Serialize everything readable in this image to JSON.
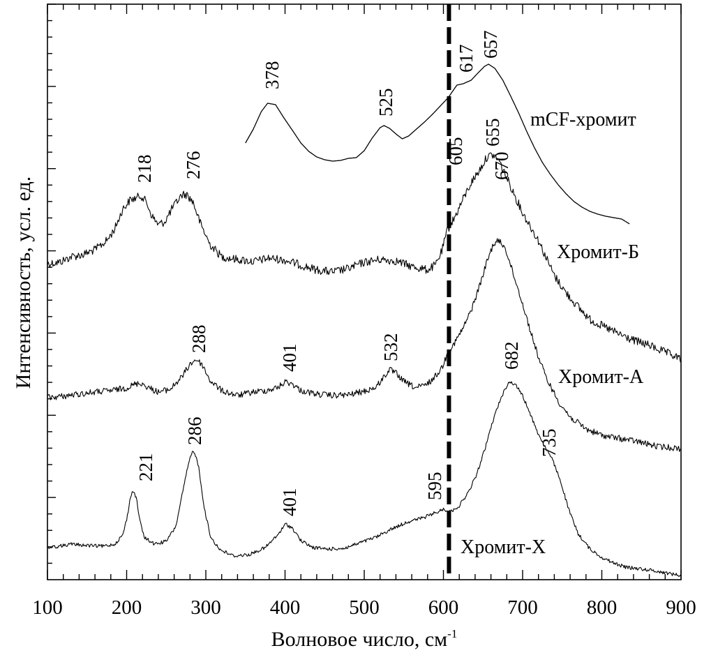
{
  "chart_data": {
    "type": "line",
    "title": "",
    "xlabel": "Волновое число, см",
    "xlabel_sup": "-1",
    "ylabel": "Интенсивность, усл. ед.",
    "xlim": [
      100,
      900
    ],
    "xticks": [
      100,
      200,
      300,
      400,
      500,
      600,
      700,
      800,
      900
    ],
    "xtick_labels": [
      "100",
      "200",
      "300",
      "400",
      "500",
      "600",
      "700",
      "800",
      "900"
    ],
    "y_tick_labels": false,
    "grid": false,
    "marker_line": {
      "x": 607,
      "style": "dashed"
    },
    "series": [
      {
        "name": "mCF-хромит",
        "noise": 0,
        "points": [
          [
            350,
            205
          ],
          [
            360,
            185
          ],
          [
            370,
            160
          ],
          [
            378,
            148
          ],
          [
            388,
            150
          ],
          [
            398,
            168
          ],
          [
            410,
            188
          ],
          [
            420,
            205
          ],
          [
            430,
            217
          ],
          [
            440,
            225
          ],
          [
            450,
            229
          ],
          [
            460,
            231
          ],
          [
            470,
            230
          ],
          [
            480,
            227
          ],
          [
            490,
            226
          ],
          [
            500,
            216
          ],
          [
            510,
            198
          ],
          [
            520,
            183
          ],
          [
            525,
            180
          ],
          [
            532,
            184
          ],
          [
            540,
            192
          ],
          [
            548,
            199
          ],
          [
            556,
            195
          ],
          [
            566,
            185
          ],
          [
            576,
            175
          ],
          [
            586,
            164
          ],
          [
            596,
            152
          ],
          [
            606,
            140
          ],
          [
            617,
            122
          ],
          [
            625,
            120
          ],
          [
            635,
            115
          ],
          [
            645,
            103
          ],
          [
            652,
            95
          ],
          [
            657,
            92
          ],
          [
            665,
            98
          ],
          [
            675,
            115
          ],
          [
            685,
            138
          ],
          [
            695,
            162
          ],
          [
            705,
            188
          ],
          [
            715,
            212
          ],
          [
            725,
            233
          ],
          [
            735,
            250
          ],
          [
            745,
            265
          ],
          [
            755,
            278
          ],
          [
            765,
            289
          ],
          [
            775,
            297
          ],
          [
            785,
            303
          ],
          [
            795,
            307
          ],
          [
            805,
            310
          ],
          [
            815,
            312
          ],
          [
            825,
            314
          ],
          [
            835,
            321
          ]
        ]
      },
      {
        "name": "Хромит-Б",
        "noise": 12,
        "points": [
          [
            100,
            378
          ],
          [
            115,
            376
          ],
          [
            130,
            368
          ],
          [
            145,
            365
          ],
          [
            160,
            358
          ],
          [
            175,
            345
          ],
          [
            185,
            328
          ],
          [
            195,
            300
          ],
          [
            205,
            286
          ],
          [
            212,
            284
          ],
          [
            218,
            280
          ],
          [
            225,
            290
          ],
          [
            232,
            310
          ],
          [
            240,
            322
          ],
          [
            248,
            318
          ],
          [
            258,
            298
          ],
          [
            266,
            285
          ],
          [
            270,
            279
          ],
          [
            276,
            279
          ],
          [
            284,
            290
          ],
          [
            293,
            320
          ],
          [
            305,
            350
          ],
          [
            320,
            368
          ],
          [
            340,
            372
          ],
          [
            360,
            375
          ],
          [
            380,
            370
          ],
          [
            400,
            373
          ],
          [
            420,
            380
          ],
          [
            440,
            387
          ],
          [
            460,
            390
          ],
          [
            480,
            385
          ],
          [
            500,
            376
          ],
          [
            520,
            372
          ],
          [
            540,
            374
          ],
          [
            560,
            382
          ],
          [
            580,
            387
          ],
          [
            590,
            380
          ],
          [
            598,
            360
          ],
          [
            605,
            330
          ],
          [
            615,
            310
          ],
          [
            625,
            285
          ],
          [
            635,
            262
          ],
          [
            645,
            245
          ],
          [
            655,
            225
          ],
          [
            662,
            222
          ],
          [
            670,
            230
          ],
          [
            680,
            255
          ],
          [
            690,
            280
          ],
          [
            700,
            305
          ],
          [
            710,
            325
          ],
          [
            720,
            345
          ],
          [
            730,
            370
          ],
          [
            740,
            395
          ],
          [
            755,
            420
          ],
          [
            770,
            440
          ],
          [
            785,
            458
          ],
          [
            800,
            467
          ],
          [
            820,
            478
          ],
          [
            840,
            488
          ],
          [
            860,
            495
          ],
          [
            880,
            505
          ],
          [
            900,
            515
          ]
        ]
      },
      {
        "name": "Хромит-А",
        "noise": 9,
        "points": [
          [
            100,
            570
          ],
          [
            120,
            568
          ],
          [
            140,
            565
          ],
          [
            160,
            562
          ],
          [
            180,
            560
          ],
          [
            200,
            556
          ],
          [
            210,
            551
          ],
          [
            218,
            549
          ],
          [
            228,
            556
          ],
          [
            240,
            562
          ],
          [
            255,
            558
          ],
          [
            270,
            540
          ],
          [
            280,
            522
          ],
          [
            288,
            515
          ],
          [
            296,
            524
          ],
          [
            305,
            545
          ],
          [
            320,
            560
          ],
          [
            340,
            567
          ],
          [
            360,
            562
          ],
          [
            375,
            560
          ],
          [
            390,
            556
          ],
          [
            401,
            547
          ],
          [
            410,
            551
          ],
          [
            420,
            560
          ],
          [
            440,
            565
          ],
          [
            460,
            567
          ],
          [
            480,
            566
          ],
          [
            500,
            561
          ],
          [
            515,
            555
          ],
          [
            525,
            540
          ],
          [
            532,
            530
          ],
          [
            540,
            535
          ],
          [
            550,
            547
          ],
          [
            565,
            556
          ],
          [
            578,
            552
          ],
          [
            588,
            542
          ],
          [
            598,
            527
          ],
          [
            606,
            505
          ],
          [
            615,
            490
          ],
          [
            625,
            470
          ],
          [
            635,
            445
          ],
          [
            645,
            412
          ],
          [
            655,
            375
          ],
          [
            663,
            350
          ],
          [
            670,
            345
          ],
          [
            678,
            355
          ],
          [
            688,
            392
          ],
          [
            698,
            428
          ],
          [
            710,
            475
          ],
          [
            720,
            512
          ],
          [
            730,
            542
          ],
          [
            745,
            575
          ],
          [
            760,
            598
          ],
          [
            780,
            615
          ],
          [
            800,
            624
          ],
          [
            820,
            628
          ],
          [
            845,
            633
          ],
          [
            870,
            640
          ],
          [
            900,
            643
          ]
        ]
      },
      {
        "name": "Хромит-Х",
        "noise": 5,
        "points": [
          [
            100,
            785
          ],
          [
            115,
            783
          ],
          [
            130,
            780
          ],
          [
            150,
            782
          ],
          [
            170,
            783
          ],
          [
            185,
            780
          ],
          [
            195,
            767
          ],
          [
            200,
            745
          ],
          [
            205,
            712
          ],
          [
            208,
            703
          ],
          [
            212,
            713
          ],
          [
            217,
            748
          ],
          [
            222,
            770
          ],
          [
            235,
            780
          ],
          [
            250,
            776
          ],
          [
            262,
            755
          ],
          [
            270,
            710
          ],
          [
            278,
            665
          ],
          [
            283,
            648
          ],
          [
            286,
            648
          ],
          [
            291,
            670
          ],
          [
            298,
            728
          ],
          [
            306,
            770
          ],
          [
            318,
            788
          ],
          [
            335,
            797
          ],
          [
            355,
            795
          ],
          [
            375,
            785
          ],
          [
            390,
            768
          ],
          [
            401,
            751
          ],
          [
            410,
            758
          ],
          [
            420,
            775
          ],
          [
            435,
            785
          ],
          [
            455,
            787
          ],
          [
            475,
            786
          ],
          [
            495,
            778
          ],
          [
            515,
            770
          ],
          [
            535,
            758
          ],
          [
            555,
            748
          ],
          [
            575,
            742
          ],
          [
            590,
            735
          ],
          [
            600,
            730
          ],
          [
            610,
            733
          ],
          [
            620,
            725
          ],
          [
            632,
            705
          ],
          [
            642,
            680
          ],
          [
            652,
            645
          ],
          [
            662,
            605
          ],
          [
            672,
            572
          ],
          [
            682,
            548
          ],
          [
            690,
            550
          ],
          [
            698,
            563
          ],
          [
            708,
            588
          ],
          [
            718,
            618
          ],
          [
            728,
            640
          ],
          [
            738,
            660
          ],
          [
            748,
            690
          ],
          [
            758,
            730
          ],
          [
            770,
            765
          ],
          [
            785,
            787
          ],
          [
            800,
            799
          ],
          [
            815,
            807
          ],
          [
            830,
            813
          ],
          [
            845,
            815
          ],
          [
            860,
            817
          ],
          [
            880,
            821
          ],
          [
            900,
            825
          ]
        ]
      }
    ],
    "peak_labels": [
      "378",
      "525",
      "617",
      "657",
      "605",
      "655",
      "218",
      "276",
      "670",
      "288",
      "401",
      "532",
      "682",
      "735",
      "221",
      "286",
      "401",
      "595"
    ]
  }
}
